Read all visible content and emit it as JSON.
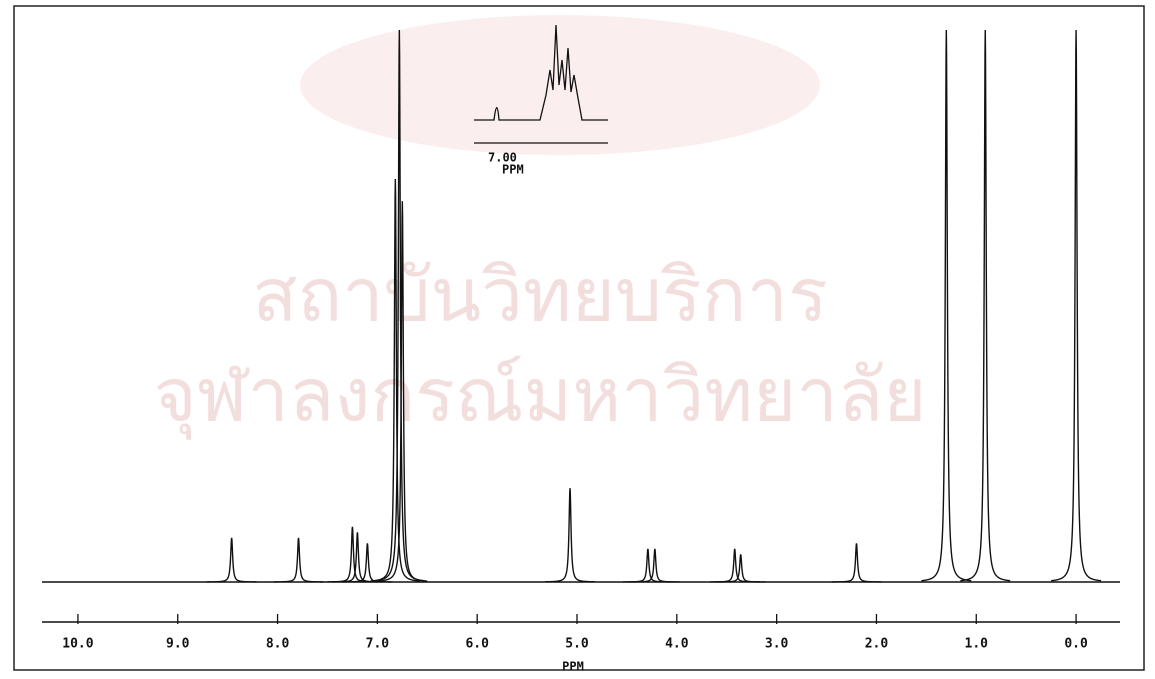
{
  "chart_data": {
    "type": "nmr",
    "watermark": [
      "สถาบันวิทยบริการ",
      "จุฬาลงกรณ์มหาวิทยาลัย"
    ],
    "x_label": "PPM",
    "inset_tick": "7.00",
    "inset_label": "PPM",
    "color": "#111111",
    "xlim": [
      10.36,
      -0.44
    ],
    "ylim": [
      0,
      100
    ],
    "xticks": [
      {
        "value": 10,
        "label": "10.0"
      },
      {
        "value": 9,
        "label": "9.0"
      },
      {
        "value": 8,
        "label": "8.0"
      },
      {
        "value": 7,
        "label": "7.0"
      },
      {
        "value": 6,
        "label": "6.0"
      },
      {
        "value": 5,
        "label": "5.0"
      },
      {
        "value": 4,
        "label": "4.0"
      },
      {
        "value": 3,
        "label": "3.0"
      },
      {
        "value": 2,
        "label": "2.0"
      },
      {
        "value": 1,
        "label": "1.0"
      },
      {
        "value": 0,
        "label": "0.0"
      }
    ],
    "x": [
      8.46,
      7.79,
      7.25,
      7.2,
      7.1,
      6.82,
      6.78,
      6.75,
      5.07,
      4.29,
      4.22,
      3.42,
      3.36,
      2.2,
      1.3,
      0.91,
      0.0
    ],
    "values": [
      8,
      8,
      10,
      9,
      7,
      73,
      100,
      69,
      17,
      6,
      6,
      6,
      5,
      7,
      100,
      100,
      100
    ]
  }
}
